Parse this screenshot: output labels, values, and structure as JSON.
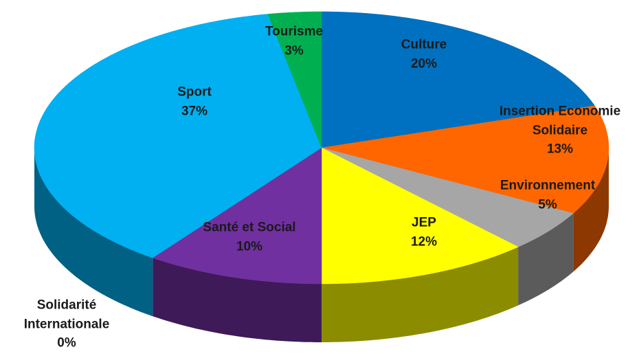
{
  "chart_data": {
    "type": "pie3d",
    "categories": [
      "Culture",
      "Insertion Economie Solidaire",
      "Environnement",
      "JEP",
      "Santé et Social",
      "Solidarité Internationale",
      "Sport",
      "Tourisme"
    ],
    "values": [
      20,
      13,
      5,
      12,
      10,
      0,
      37,
      3
    ],
    "value_labels": [
      "20%",
      "13%",
      "5%",
      "12%",
      "10%",
      "0%",
      "37%",
      "3%"
    ],
    "colors": [
      "#0070c0",
      "#ff6600",
      "#a6a6a6",
      "#ffff00",
      "#7030a0",
      "#c00000",
      "#00b0f0",
      "#00b050"
    ]
  }
}
